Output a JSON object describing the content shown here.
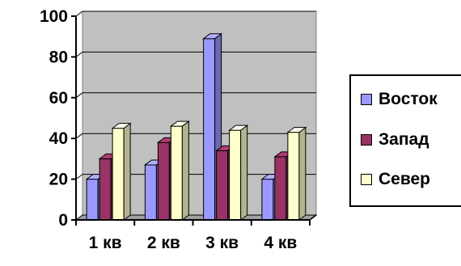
{
  "chart_data": {
    "type": "bar",
    "categories": [
      "1 кв",
      "2 кв",
      "3 кв",
      "4 кв"
    ],
    "series": [
      {
        "name": "Восток",
        "values": [
          20,
          27,
          89,
          20
        ],
        "color": "#9999ff"
      },
      {
        "name": "Запад",
        "values": [
          30,
          38,
          34,
          31
        ],
        "color": "#993366"
      },
      {
        "name": "Север",
        "values": [
          45,
          46,
          44,
          43
        ],
        "color": "#ffffcc"
      }
    ],
    "y_ticks": [
      "0",
      "20",
      "40",
      "60",
      "80",
      "100"
    ],
    "ylim": [
      0,
      100
    ],
    "grid": true,
    "legend_position": "right",
    "plot_background": "#c0c0c0",
    "title": "",
    "xlabel": "",
    "ylabel": ""
  }
}
